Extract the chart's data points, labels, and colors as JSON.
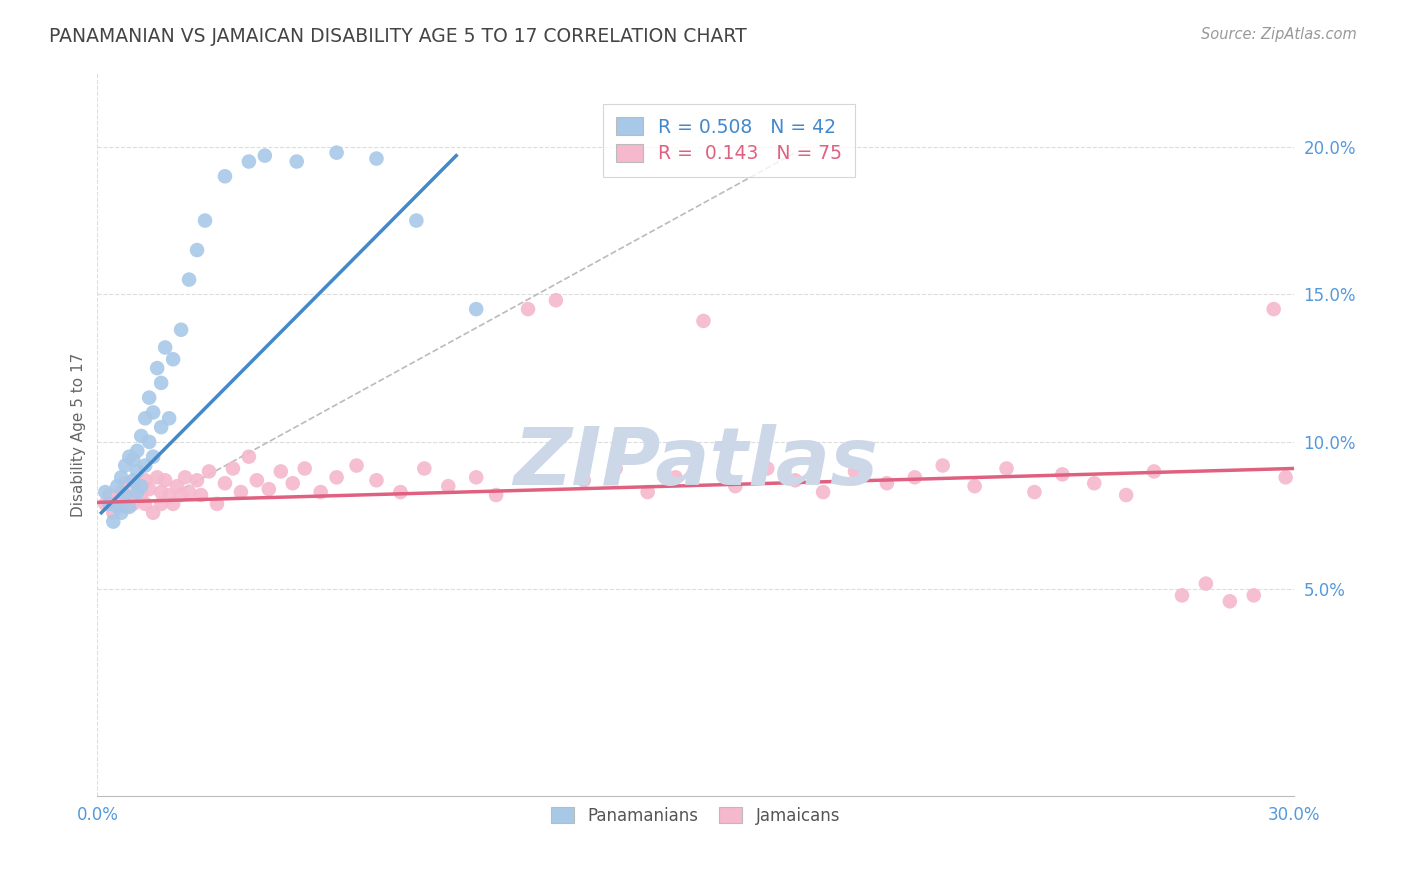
{
  "title": "PANAMANIAN VS JAMAICAN DISABILITY AGE 5 TO 17 CORRELATION CHART",
  "source": "Source: ZipAtlas.com",
  "ylabel": "Disability Age 5 to 17",
  "xmin": 0.0,
  "xmax": 0.3,
  "ymin": -0.02,
  "ymax": 0.225,
  "xtick_positions": [
    0.0,
    0.3
  ],
  "xtick_labels": [
    "0.0%",
    "30.0%"
  ],
  "ytick_positions": [
    0.05,
    0.1,
    0.15,
    0.2
  ],
  "ytick_labels": [
    "5.0%",
    "10.0%",
    "15.0%",
    "20.0%"
  ],
  "blue_R": 0.508,
  "blue_N": 42,
  "pink_R": 0.143,
  "pink_N": 75,
  "blue_color": "#a8c8e8",
  "pink_color": "#f5b8cc",
  "blue_line_color": "#4488cc",
  "pink_line_color": "#e06080",
  "dashed_line_color": "#bbbbbb",
  "grid_color": "#dddddd",
  "axis_label_color": "#5599dd",
  "title_color": "#444444",
  "watermark_color": "#ccd8e8",
  "blue_scatter_x": [
    0.002,
    0.003,
    0.004,
    0.005,
    0.005,
    0.006,
    0.006,
    0.007,
    0.007,
    0.008,
    0.008,
    0.009,
    0.009,
    0.01,
    0.01,
    0.01,
    0.011,
    0.011,
    0.012,
    0.012,
    0.013,
    0.013,
    0.014,
    0.014,
    0.015,
    0.016,
    0.016,
    0.017,
    0.018,
    0.019,
    0.021,
    0.023,
    0.025,
    0.027,
    0.032,
    0.038,
    0.042,
    0.05,
    0.06,
    0.07,
    0.08,
    0.095
  ],
  "blue_scatter_y": [
    0.083,
    0.079,
    0.073,
    0.085,
    0.078,
    0.088,
    0.076,
    0.092,
    0.082,
    0.095,
    0.078,
    0.087,
    0.094,
    0.083,
    0.09,
    0.097,
    0.085,
    0.102,
    0.092,
    0.108,
    0.1,
    0.115,
    0.095,
    0.11,
    0.125,
    0.105,
    0.12,
    0.132,
    0.108,
    0.128,
    0.138,
    0.155,
    0.165,
    0.175,
    0.19,
    0.195,
    0.197,
    0.195,
    0.198,
    0.196,
    0.175,
    0.145
  ],
  "pink_scatter_x": [
    0.002,
    0.003,
    0.004,
    0.005,
    0.006,
    0.007,
    0.007,
    0.008,
    0.009,
    0.01,
    0.011,
    0.012,
    0.012,
    0.013,
    0.014,
    0.015,
    0.016,
    0.016,
    0.017,
    0.018,
    0.019,
    0.02,
    0.021,
    0.022,
    0.023,
    0.025,
    0.026,
    0.028,
    0.03,
    0.032,
    0.034,
    0.036,
    0.038,
    0.04,
    0.043,
    0.046,
    0.049,
    0.052,
    0.056,
    0.06,
    0.065,
    0.07,
    0.076,
    0.082,
    0.088,
    0.095,
    0.1,
    0.108,
    0.115,
    0.122,
    0.13,
    0.138,
    0.145,
    0.152,
    0.16,
    0.168,
    0.175,
    0.182,
    0.19,
    0.198,
    0.205,
    0.212,
    0.22,
    0.228,
    0.235,
    0.242,
    0.25,
    0.258,
    0.265,
    0.272,
    0.278,
    0.284,
    0.29,
    0.295,
    0.298
  ],
  "pink_scatter_y": [
    0.079,
    0.082,
    0.076,
    0.08,
    0.083,
    0.078,
    0.086,
    0.081,
    0.079,
    0.085,
    0.082,
    0.079,
    0.087,
    0.084,
    0.076,
    0.088,
    0.083,
    0.079,
    0.087,
    0.082,
    0.079,
    0.085,
    0.082,
    0.088,
    0.083,
    0.087,
    0.082,
    0.09,
    0.079,
    0.086,
    0.091,
    0.083,
    0.095,
    0.087,
    0.084,
    0.09,
    0.086,
    0.091,
    0.083,
    0.088,
    0.092,
    0.087,
    0.083,
    0.091,
    0.085,
    0.088,
    0.082,
    0.145,
    0.148,
    0.087,
    0.091,
    0.083,
    0.088,
    0.141,
    0.085,
    0.091,
    0.087,
    0.083,
    0.09,
    0.086,
    0.088,
    0.092,
    0.085,
    0.091,
    0.083,
    0.089,
    0.086,
    0.082,
    0.09,
    0.048,
    0.052,
    0.046,
    0.048,
    0.145,
    0.088
  ],
  "blue_line_x": [
    0.001,
    0.09
  ],
  "blue_line_y": [
    0.076,
    0.197
  ],
  "pink_line_x": [
    0.0,
    0.3
  ],
  "pink_line_y": [
    0.0795,
    0.091
  ],
  "dashed_line_x": [
    0.02,
    0.175
  ],
  "dashed_line_y": [
    0.083,
    0.198
  ]
}
